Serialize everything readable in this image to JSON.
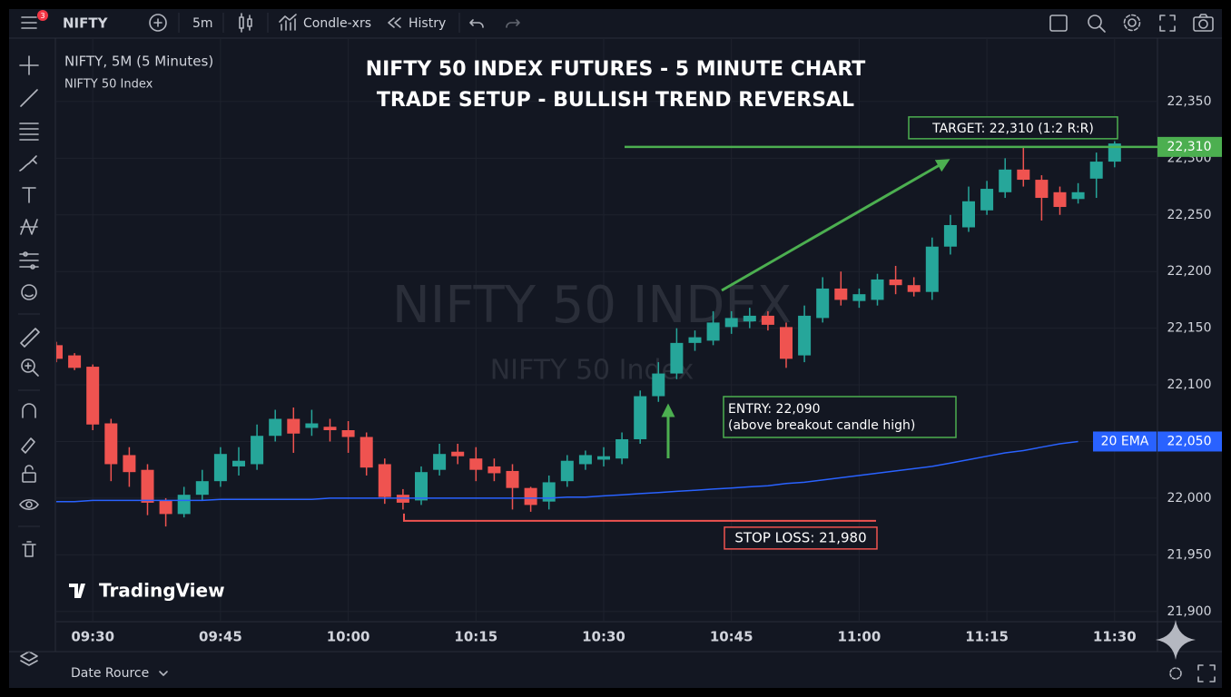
{
  "toolbar": {
    "notification_count": "3",
    "symbol": "NIFTY",
    "interval": "5m",
    "chart_type": "Condle-xrs",
    "history": "Histry"
  },
  "legend": {
    "symbol_interval": "NIFTY, 5M (5 Minutes)",
    "instrument": "NIFTY 50 Index"
  },
  "watermark": {
    "symbol": "NIFTY 50 INDEX",
    "description": "NIFTY 50 Index"
  },
  "brand": "TradingView",
  "bottom_bar": {
    "date_range": "Date Rource"
  },
  "chart_data": {
    "type": "candlestick",
    "title": "NIFTY 50 INDEX FUTURES - 5 MINUTE CHART",
    "subtitle": "TRADE SETUP - BULLISH TREND REVERSAL",
    "categories": [
      null,
      null,
      "09:30",
      null,
      null,
      null,
      null,
      null,
      null,
      "09:45",
      null,
      null,
      null,
      null,
      null,
      null,
      "10:00",
      null,
      null,
      null,
      null,
      null,
      null,
      "10:15",
      null,
      null,
      null,
      null,
      null,
      null,
      "10:30",
      null,
      null,
      null,
      null,
      null,
      null,
      "10:45",
      null,
      null,
      null,
      null,
      null,
      null,
      "11:00",
      null,
      null,
      null,
      null,
      null,
      null,
      "11:15",
      null,
      null,
      null,
      null,
      null,
      null,
      "11:30"
    ],
    "open": [
      22135,
      22126,
      22116,
      22066,
      22038,
      22025,
      21998,
      21986,
      22003,
      22015,
      22028,
      22030,
      22055,
      22070,
      22062,
      22063,
      22060,
      22054,
      22030,
      22003,
      21998,
      22025,
      22041,
      22035,
      22028,
      22024,
      22009,
      21997,
      22015,
      22030,
      22034,
      22035,
      22052,
      22090,
      22110,
      22137,
      22139,
      22151,
      22156,
      22161,
      22151,
      22126,
      22159,
      22185,
      22174,
      22175,
      22193,
      22188,
      22182,
      22222,
      22239,
      22254,
      22270,
      22290,
      22281,
      22270,
      22264,
      22282,
      22297
    ],
    "high": [
      22138,
      22128,
      22118,
      22070,
      22045,
      22030,
      22000,
      22010,
      22025,
      22045,
      22045,
      22065,
      22078,
      22080,
      22078,
      22070,
      22068,
      22058,
      22035,
      22008,
      22028,
      22048,
      22048,
      22045,
      22035,
      22030,
      22010,
      22020,
      22038,
      22042,
      22045,
      22058,
      22095,
      22120,
      22150,
      22148,
      22165,
      22165,
      22168,
      22165,
      22155,
      22170,
      22195,
      22200,
      22185,
      22198,
      22205,
      22195,
      22230,
      22250,
      22275,
      22280,
      22300,
      22310,
      22285,
      22275,
      22278,
      22305,
      22315
    ],
    "low": [
      22120,
      22113,
      22060,
      22015,
      22010,
      21985,
      21975,
      21983,
      21998,
      22010,
      22020,
      22025,
      22050,
      22040,
      22055,
      22050,
      22040,
      22020,
      21995,
      21990,
      21994,
      22020,
      22030,
      22015,
      22015,
      21990,
      21988,
      21990,
      22010,
      22025,
      22028,
      22030,
      22048,
      22085,
      22105,
      22130,
      22135,
      22145,
      22150,
      22148,
      22115,
      22120,
      22155,
      22170,
      22168,
      22170,
      22180,
      22178,
      22175,
      22215,
      22235,
      22250,
      22265,
      22275,
      22245,
      22250,
      22260,
      22265,
      22292
    ],
    "close": [
      22123,
      22115,
      22065,
      22030,
      22023,
      21996,
      21986,
      22003,
      22015,
      22039,
      22033,
      22055,
      22070,
      22057,
      22066,
      22060,
      22054,
      22027,
      22001,
      21996,
      22023,
      22039,
      22037,
      22025,
      22022,
      22009,
      21994,
      22014,
      22033,
      22038,
      22037,
      22052,
      22090,
      22110,
      22137,
      22142,
      22155,
      22159,
      22161,
      22153,
      22123,
      22161,
      22185,
      22175,
      22180,
      22193,
      22188,
      22182,
      22222,
      22241,
      22262,
      22273,
      22290,
      22281,
      22265,
      22257,
      22270,
      22297,
      22313
    ],
    "up_color": "#26a69a",
    "down_color": "#ef5350",
    "series": [
      {
        "name": "20 EMA",
        "color": "#2962ff",
        "price_label": "22,050",
        "values": [
          21997,
          21997,
          21998,
          21998,
          21998,
          21998,
          21998,
          21998,
          21998,
          21999,
          21999,
          21999,
          21999,
          21999,
          21999,
          22000,
          22000,
          22000,
          22000,
          22000,
          22000,
          22000,
          22000,
          22000,
          22000,
          22000,
          22000,
          22000,
          22001,
          22001,
          22002,
          22003,
          22004,
          22005,
          22006,
          22007,
          22008,
          22009,
          22010,
          22011,
          22013,
          22014,
          22016,
          22018,
          22020,
          22022,
          22024,
          22026,
          22028,
          22031,
          22034,
          22037,
          22040,
          22042,
          22045,
          22048,
          22050,
          null,
          null
        ]
      }
    ],
    "ylim": [
      21891,
      22406
    ],
    "yticks": [
      {
        "value": 21900,
        "label": "21,900"
      },
      {
        "value": 21950,
        "label": "21,950"
      },
      {
        "value": 22000,
        "label": "22,000"
      },
      {
        "value": 22050,
        "label": "22,050"
      },
      {
        "value": 22100,
        "label": "22,100"
      },
      {
        "value": 22150,
        "label": "22,150"
      },
      {
        "value": 22200,
        "label": "22,200"
      },
      {
        "value": 22250,
        "label": "22,250"
      },
      {
        "value": 22300,
        "label": "22,300"
      },
      {
        "value": 22350,
        "label": "22,350"
      }
    ],
    "grid": true,
    "target": {
      "value": 22310,
      "label": "TARGET: 22,310 (1:2 R:R)",
      "price_label": "22,310",
      "color": "#4caf50"
    },
    "entry": {
      "value": 22090,
      "label": "ENTRY: 22,090",
      "note": "(above breakout candle high)",
      "color": "#4caf50"
    },
    "stop_loss": {
      "value": 21980,
      "label": "STOP LOSS: 21,980",
      "color": "#ef5350"
    }
  }
}
